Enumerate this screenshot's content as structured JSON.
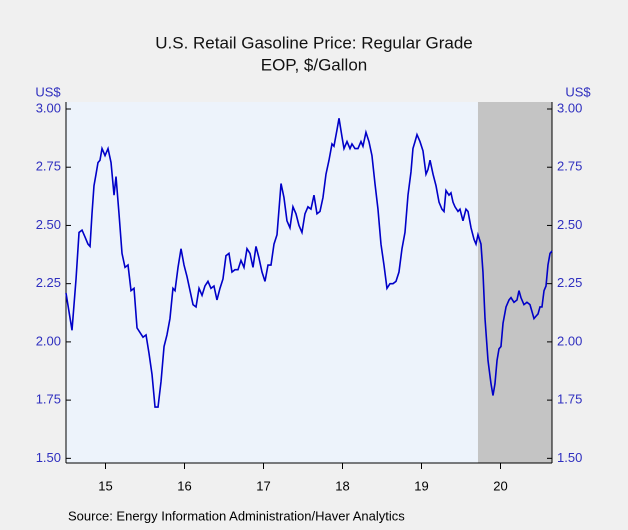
{
  "chart_data": {
    "type": "line",
    "title": "U.S. Retail Gasoline Price: Regular Grade",
    "subtitle": "EOP, $/Gallon",
    "y_label": "US$",
    "y2_label": "US$",
    "source": "Source:  Energy Information Administration/Haver Analytics",
    "xlim": [
      2015,
      2021.152
    ],
    "ylim": [
      1.48,
      3.03
    ],
    "y2lim": [
      1.48,
      3.03
    ],
    "xticks": [
      {
        "value": 2015.5,
        "label": "15"
      },
      {
        "value": 2016.5,
        "label": "16"
      },
      {
        "value": 2017.5,
        "label": "17"
      },
      {
        "value": 2018.5,
        "label": "18"
      },
      {
        "value": 2019.5,
        "label": "19"
      },
      {
        "value": 2020.5,
        "label": "20"
      }
    ],
    "yticks": [
      {
        "value": 1.5,
        "label": "1.50"
      },
      {
        "value": 1.75,
        "label": "1.75"
      },
      {
        "value": 2,
        "label": "2.00"
      },
      {
        "value": 2.25,
        "label": "2.25"
      },
      {
        "value": 2.5,
        "label": "2.50"
      },
      {
        "value": 2.75,
        "label": "2.75"
      },
      {
        "value": 3,
        "label": "3.00"
      }
    ],
    "y2ticks": [
      {
        "value": 1.5,
        "label": "1.50"
      },
      {
        "value": 1.75,
        "label": "1.75"
      },
      {
        "value": 2,
        "label": "2.00"
      },
      {
        "value": 2.25,
        "label": "2.25"
      },
      {
        "value": 2.5,
        "label": "2.50"
      },
      {
        "value": 2.75,
        "label": "2.75"
      },
      {
        "value": 3,
        "label": "3.00"
      }
    ],
    "shaded_x": [
      2020.215,
      2021.152
    ],
    "shade_color": "#c4c4c4",
    "series": [
      {
        "color": "#0000c8",
        "x": [
          2015.0,
          2015.076,
          2015.127,
          2015.165,
          2015.203,
          2015.241,
          2015.278,
          2015.304,
          2015.329,
          2015.354,
          2015.38,
          2015.405,
          2015.43,
          2015.456,
          2015.494,
          2015.532,
          2015.57,
          2015.608,
          2015.633,
          2015.671,
          2015.709,
          2015.747,
          2015.785,
          2015.823,
          2015.861,
          2015.899,
          2015.937,
          2015.975,
          2016.013,
          2016.051,
          2016.089,
          2016.127,
          2016.165,
          2016.203,
          2016.241,
          2016.278,
          2016.316,
          2016.354,
          2016.38,
          2016.418,
          2016.456,
          2016.494,
          2016.532,
          2016.57,
          2016.608,
          2016.646,
          2016.684,
          2016.722,
          2016.759,
          2016.797,
          2016.835,
          2016.873,
          2016.911,
          2016.949,
          2016.987,
          2017.025,
          2017.063,
          2017.101,
          2017.139,
          2017.177,
          2017.215,
          2017.253,
          2017.291,
          2017.329,
          2017.367,
          2017.405,
          2017.443,
          2017.481,
          2017.519,
          2017.557,
          2017.595,
          2017.633,
          2017.671,
          2017.722,
          2017.759,
          2017.797,
          2017.835,
          2017.873,
          2017.911,
          2017.949,
          2017.987,
          2018.025,
          2018.063,
          2018.101,
          2018.139,
          2018.177,
          2018.215,
          2018.253,
          2018.291,
          2018.329,
          2018.367,
          2018.392,
          2018.43,
          2018.456,
          2018.494,
          2018.519,
          2018.557,
          2018.595,
          2018.62,
          2018.658,
          2018.696,
          2018.734,
          2018.759,
          2018.797,
          2018.835,
          2018.873,
          2018.911,
          2018.949,
          2018.987,
          2019.025,
          2019.063,
          2019.101,
          2019.139,
          2019.177,
          2019.215,
          2019.253,
          2019.291,
          2019.329,
          2019.367,
          2019.392,
          2019.418,
          2019.443,
          2019.481,
          2019.519,
          2019.557,
          2019.582,
          2019.608,
          2019.646,
          2019.684,
          2019.722,
          2019.759,
          2019.785,
          2019.81,
          2019.848,
          2019.873,
          2019.899,
          2019.924,
          2019.962,
          2019.987,
          2020.025,
          2020.063,
          2020.089,
          2020.127,
          2020.165,
          2020.19,
          2020.215,
          2020.253,
          2020.278,
          2020.304,
          2020.342,
          2020.38,
          2020.405,
          2020.43,
          2020.456,
          2020.481,
          2020.506,
          2020.532,
          2020.57,
          2020.608,
          2020.633,
          2020.671,
          2020.709,
          2020.734,
          2020.759,
          2020.797,
          2020.835,
          2020.873,
          2020.899,
          2020.924,
          2020.949,
          2020.975,
          2021.0,
          2021.025,
          2021.051,
          2021.076,
          2021.101,
          2021.127,
          2021.152
        ],
        "values": [
          2.21,
          2.05,
          2.27,
          2.47,
          2.48,
          2.45,
          2.42,
          2.41,
          2.55,
          2.67,
          2.72,
          2.77,
          2.78,
          2.83,
          2.8,
          2.83,
          2.77,
          2.63,
          2.71,
          2.55,
          2.38,
          2.32,
          2.33,
          2.22,
          2.23,
          2.06,
          2.04,
          2.02,
          2.03,
          1.95,
          1.86,
          1.72,
          1.72,
          1.83,
          1.98,
          2.03,
          2.1,
          2.23,
          2.22,
          2.32,
          2.4,
          2.33,
          2.28,
          2.22,
          2.16,
          2.15,
          2.23,
          2.2,
          2.24,
          2.26,
          2.23,
          2.24,
          2.18,
          2.23,
          2.27,
          2.37,
          2.38,
          2.3,
          2.31,
          2.31,
          2.35,
          2.32,
          2.4,
          2.38,
          2.32,
          2.41,
          2.36,
          2.3,
          2.26,
          2.33,
          2.33,
          2.42,
          2.46,
          2.68,
          2.62,
          2.52,
          2.49,
          2.58,
          2.55,
          2.5,
          2.47,
          2.55,
          2.58,
          2.57,
          2.63,
          2.55,
          2.56,
          2.62,
          2.72,
          2.78,
          2.85,
          2.84,
          2.91,
          2.96,
          2.88,
          2.83,
          2.86,
          2.83,
          2.85,
          2.83,
          2.83,
          2.86,
          2.84,
          2.9,
          2.86,
          2.8,
          2.68,
          2.57,
          2.42,
          2.33,
          2.23,
          2.25,
          2.25,
          2.26,
          2.3,
          2.4,
          2.47,
          2.63,
          2.73,
          2.83,
          2.86,
          2.89,
          2.86,
          2.82,
          2.72,
          2.74,
          2.78,
          2.72,
          2.67,
          2.6,
          2.57,
          2.56,
          2.65,
          2.63,
          2.64,
          2.6,
          2.58,
          2.56,
          2.57,
          2.52,
          2.57,
          2.56,
          2.49,
          2.44,
          2.42,
          2.46,
          2.42,
          2.3,
          2.1,
          1.92,
          1.82,
          1.77,
          1.82,
          1.92,
          1.97,
          1.98,
          2.08,
          2.15,
          2.18,
          2.19,
          2.17,
          2.18,
          2.22,
          2.19,
          2.16,
          2.17,
          2.16,
          2.13,
          2.1,
          2.11,
          2.12,
          2.15,
          2.15,
          2.22,
          2.24,
          2.33,
          2.38,
          2.39
        ]
      }
    ]
  }
}
